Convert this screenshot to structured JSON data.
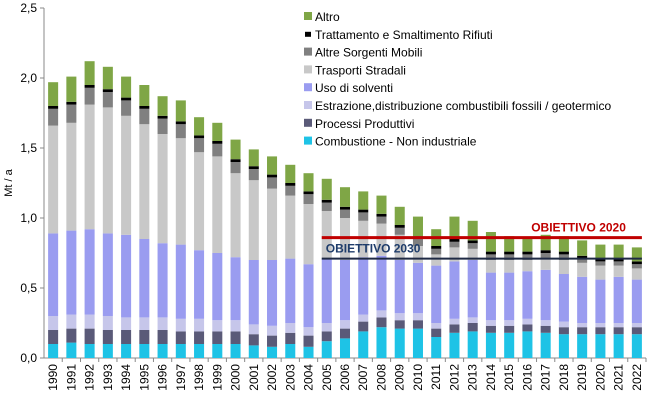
{
  "chart_data": {
    "type": "bar",
    "stacked": true,
    "ylabel": "Mt / a",
    "ylim": [
      0,
      2.5
    ],
    "yticks": [
      "0,0",
      "0,5",
      "1,0",
      "1,5",
      "2,0",
      "2,5"
    ],
    "ytick_values": [
      0,
      0.5,
      1.0,
      1.5,
      2.0,
      2.5
    ],
    "grid": false,
    "legend_position": "top-right",
    "categories": [
      "1990",
      "1991",
      "1992",
      "1993",
      "1994",
      "1995",
      "1996",
      "1997",
      "1998",
      "1999",
      "2000",
      "2001",
      "2002",
      "2003",
      "2004",
      "2005",
      "2006",
      "2007",
      "2008",
      "2009",
      "2010",
      "2011",
      "2012",
      "2013",
      "2014",
      "2015",
      "2016",
      "2017",
      "2018",
      "2019",
      "2020",
      "2021",
      "2022"
    ],
    "series": [
      {
        "name": "Combustione - Non industriale",
        "color": "#1ec3e6",
        "values": [
          0.1,
          0.11,
          0.1,
          0.1,
          0.1,
          0.1,
          0.1,
          0.1,
          0.1,
          0.1,
          0.1,
          0.09,
          0.08,
          0.1,
          0.08,
          0.12,
          0.14,
          0.19,
          0.22,
          0.21,
          0.21,
          0.15,
          0.18,
          0.19,
          0.18,
          0.18,
          0.19,
          0.18,
          0.17,
          0.17,
          0.17,
          0.17,
          0.17
        ]
      },
      {
        "name": "Processi Produttivi",
        "color": "#5a5a78",
        "values": [
          0.1,
          0.1,
          0.11,
          0.1,
          0.1,
          0.1,
          0.1,
          0.09,
          0.09,
          0.09,
          0.09,
          0.08,
          0.08,
          0.08,
          0.08,
          0.07,
          0.07,
          0.07,
          0.07,
          0.06,
          0.06,
          0.06,
          0.06,
          0.06,
          0.05,
          0.05,
          0.05,
          0.05,
          0.05,
          0.05,
          0.05,
          0.05,
          0.05
        ]
      },
      {
        "name": "Estrazione,distribuzione combustibili fossili / geotermico",
        "color": "#c6c6ea",
        "values": [
          0.1,
          0.1,
          0.1,
          0.1,
          0.09,
          0.09,
          0.09,
          0.09,
          0.09,
          0.08,
          0.08,
          0.07,
          0.07,
          0.07,
          0.06,
          0.06,
          0.06,
          0.05,
          0.05,
          0.05,
          0.05,
          0.04,
          0.04,
          0.04,
          0.04,
          0.04,
          0.04,
          0.04,
          0.04,
          0.03,
          0.03,
          0.03,
          0.03
        ]
      },
      {
        "name": "Uso di solventi",
        "color": "#9a9cf0",
        "values": [
          0.59,
          0.6,
          0.61,
          0.59,
          0.59,
          0.56,
          0.53,
          0.53,
          0.49,
          0.48,
          0.45,
          0.46,
          0.47,
          0.46,
          0.45,
          0.46,
          0.43,
          0.41,
          0.39,
          0.38,
          0.36,
          0.41,
          0.41,
          0.41,
          0.34,
          0.34,
          0.34,
          0.36,
          0.34,
          0.33,
          0.31,
          0.33,
          0.31
        ]
      },
      {
        "name": "Trasporti Stradali",
        "color": "#c8c8c8",
        "values": [
          0.77,
          0.77,
          0.89,
          0.9,
          0.85,
          0.82,
          0.78,
          0.76,
          0.7,
          0.69,
          0.6,
          0.57,
          0.51,
          0.45,
          0.43,
          0.34,
          0.3,
          0.26,
          0.23,
          0.18,
          0.12,
          0.08,
          0.1,
          0.08,
          0.09,
          0.09,
          0.08,
          0.08,
          0.1,
          0.1,
          0.1,
          0.08,
          0.08
        ]
      },
      {
        "name": "Altre Sorgenti Mobili",
        "color": "#808080",
        "values": [
          0.12,
          0.13,
          0.12,
          0.11,
          0.11,
          0.11,
          0.11,
          0.1,
          0.1,
          0.09,
          0.08,
          0.08,
          0.08,
          0.07,
          0.07,
          0.06,
          0.06,
          0.06,
          0.05,
          0.05,
          0.05,
          0.04,
          0.04,
          0.04,
          0.04,
          0.04,
          0.04,
          0.04,
          0.04,
          0.03,
          0.03,
          0.03,
          0.03
        ]
      },
      {
        "name": "Trattamento e Smaltimento Rifiuti",
        "color": "#000000",
        "values": [
          0.02,
          0.02,
          0.02,
          0.02,
          0.02,
          0.02,
          0.02,
          0.02,
          0.02,
          0.02,
          0.02,
          0.02,
          0.02,
          0.02,
          0.02,
          0.02,
          0.02,
          0.02,
          0.02,
          0.02,
          0.02,
          0.02,
          0.02,
          0.02,
          0.02,
          0.02,
          0.02,
          0.02,
          0.02,
          0.02,
          0.02,
          0.02,
          0.02
        ]
      },
      {
        "name": "Altro",
        "color": "#7fa646",
        "values": [
          0.17,
          0.18,
          0.17,
          0.16,
          0.15,
          0.15,
          0.14,
          0.15,
          0.13,
          0.13,
          0.14,
          0.12,
          0.13,
          0.13,
          0.13,
          0.15,
          0.14,
          0.13,
          0.13,
          0.13,
          0.14,
          0.12,
          0.16,
          0.14,
          0.14,
          0.11,
          0.1,
          0.11,
          0.11,
          0.11,
          0.1,
          0.1,
          0.1
        ]
      }
    ],
    "legend_order": [
      "Altro",
      "Trattamento e Smaltimento Rifiuti",
      "Altre Sorgenti Mobili",
      "Trasporti Stradali",
      "Uso di solventi",
      "Estrazione,distribuzione combustibili fossili / geotermico",
      "Processi Produttivi",
      "Combustione - Non industriale"
    ],
    "target_lines": [
      {
        "label": "OBIETTIVO 2020",
        "value": 0.86,
        "from": "2005",
        "to": "2022",
        "color": "#c00000",
        "label_color": "#c00000"
      },
      {
        "label": "OBIETTIVO 2030",
        "value": 0.71,
        "from": "2005",
        "to": "2022",
        "color": "#1f2a44",
        "label_color": "#1f3d6b"
      }
    ]
  }
}
